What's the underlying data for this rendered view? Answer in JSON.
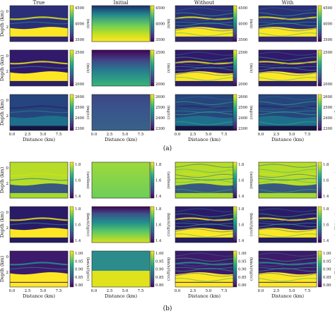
{
  "figure": {
    "columns": [
      "True",
      "Initial",
      "Without",
      "With"
    ],
    "ylabel": "Depth (km)",
    "xlabel": "Distance (km)",
    "xticks": [
      "0.0",
      "2.5",
      "5.0",
      "7.5"
    ],
    "yticks": [
      "0",
      "2"
    ],
    "panels": [
      {
        "label": "(a)",
        "rows": [
          {
            "unit": "(m/s)",
            "ticks": [
              "4500",
              "4000",
              "3500"
            ]
          },
          {
            "unit": "(m/s)",
            "ticks": [
              "2500",
              "2000"
            ]
          },
          {
            "unit": "(mg/cc)",
            "ticks": [
              "2600",
              "2500",
              "2400",
              "2300"
            ]
          }
        ]
      },
      {
        "label": "(b)",
        "rows": [
          {
            "unit": "(unitless)",
            "ticks": [
              "1.8",
              "1.6",
              "1.4"
            ]
          },
          {
            "unit": "(km/s)/(g/cc)",
            "ticks": [
              "1.8",
              "1.6",
              "1.4"
            ]
          },
          {
            "unit": "(km/s)/(g/cc)",
            "ticks": [
              "1.00",
              "0.95",
              "0.90",
              "0.85",
              "0.80"
            ]
          }
        ]
      }
    ]
  }
}
